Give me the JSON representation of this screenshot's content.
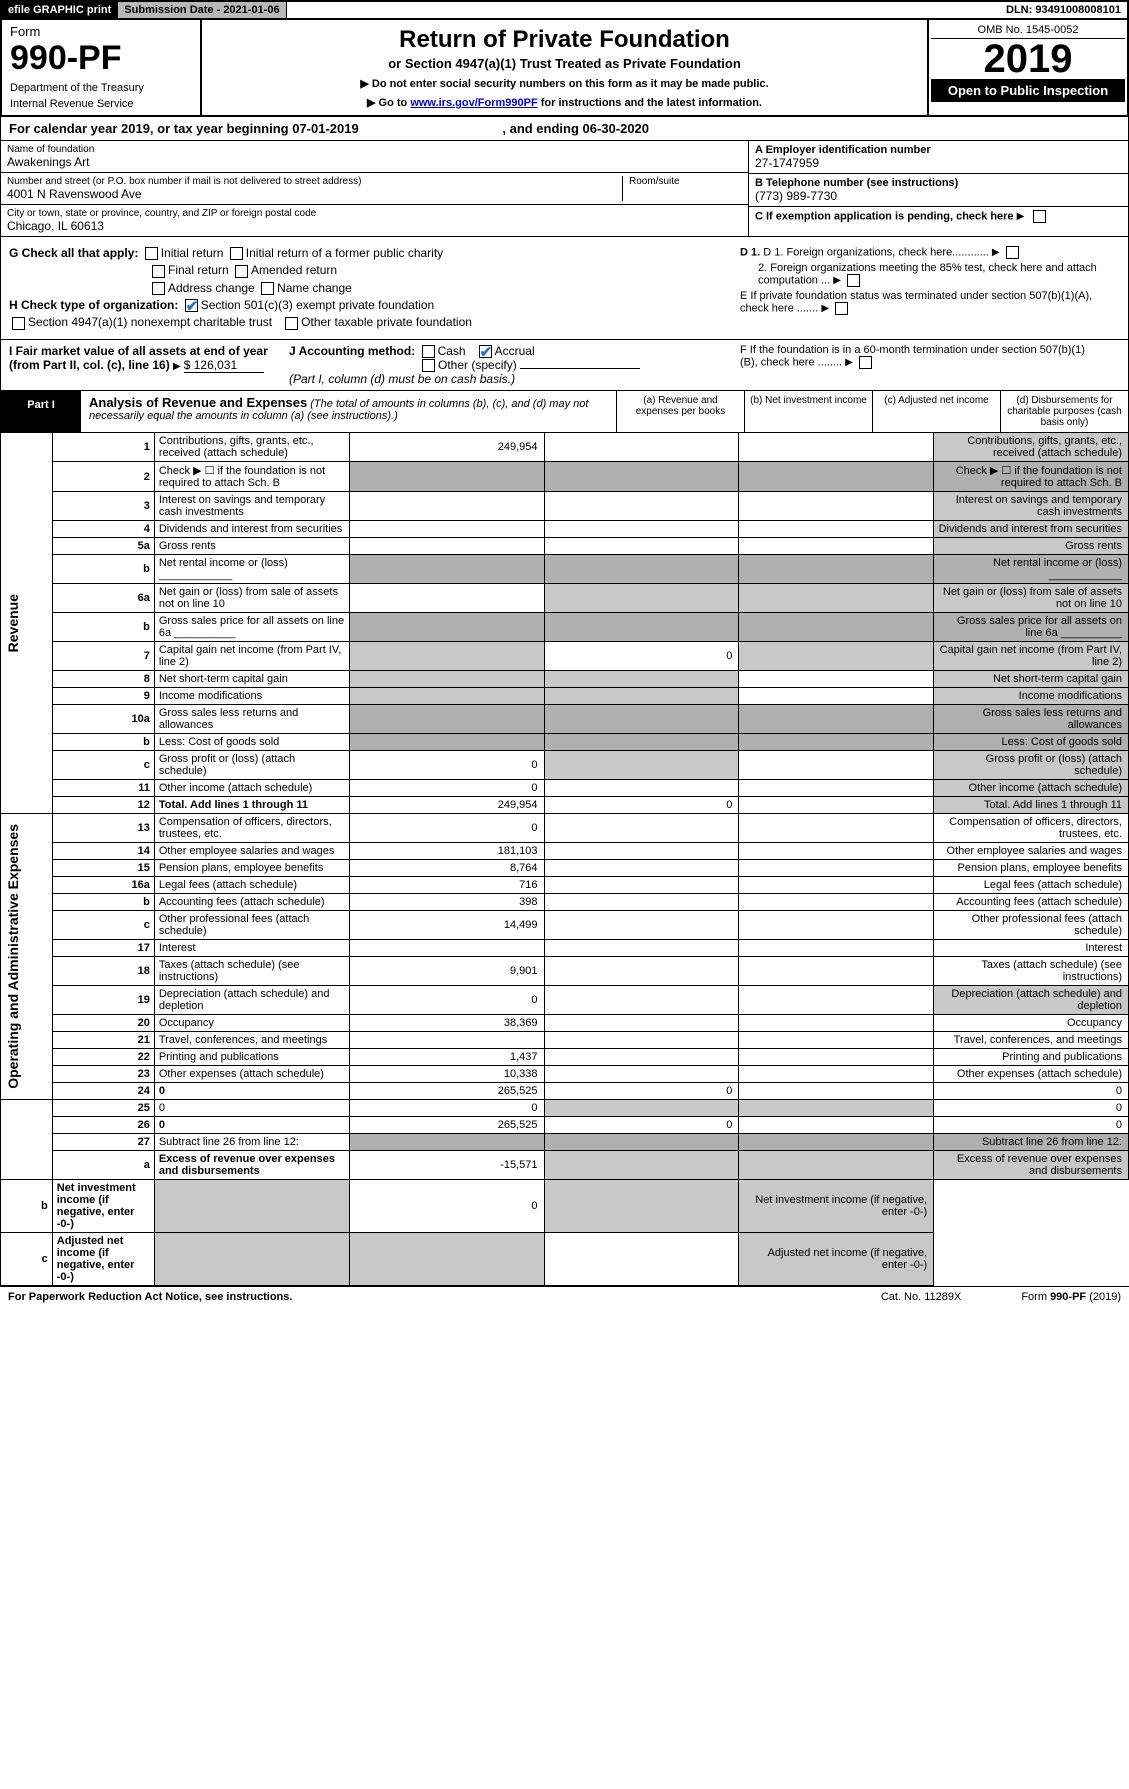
{
  "topbar": {
    "efile": "efile GRAPHIC print",
    "submission": "Submission Date - 2021-01-06",
    "dln": "DLN: 93491008008101"
  },
  "header": {
    "form": "Form",
    "formnum": "990-PF",
    "dept": "Department of the Treasury",
    "irs": "Internal Revenue Service",
    "title": "Return of Private Foundation",
    "sub1": "or Section 4947(a)(1) Trust Treated as Private Foundation",
    "sub2a": "▶ Do not enter social security numbers on this form as it may be made public.",
    "sub2b": "▶ Go to ",
    "link": "www.irs.gov/Form990PF",
    "sub2c": " for instructions and the latest information.",
    "omb": "OMB No. 1545-0052",
    "year": "2019",
    "open": "Open to Public Inspection"
  },
  "calendar": {
    "a": "For calendar year 2019, or tax year beginning 07-01-2019",
    "b": ", and ending 06-30-2020"
  },
  "info": {
    "name_lab": "Name of foundation",
    "name": "Awakenings Art",
    "addr_lab": "Number and street (or P.O. box number if mail is not delivered to street address)",
    "addr": "4001 N Ravenswood Ave",
    "room_lab": "Room/suite",
    "city_lab": "City or town, state or province, country, and ZIP or foreign postal code",
    "city": "Chicago, IL  60613",
    "ein_lab": "A Employer identification number",
    "ein": "27-1747959",
    "tel_lab": "B Telephone number (see instructions)",
    "tel": "(773) 989-7730",
    "c": "C If exemption application is pending, check here",
    "d1": "D 1. Foreign organizations, check here............",
    "d2": "2. Foreign organizations meeting the 85% test, check here and attach computation ...",
    "e": "E  If private foundation status was terminated under section 507(b)(1)(A), check here .......",
    "f": "F  If the foundation is in a 60-month termination under section 507(b)(1)(B), check here ........"
  },
  "g": {
    "label": "G Check all that apply:",
    "opts": [
      "Initial return",
      "Initial return of a former public charity",
      "Final return",
      "Amended return",
      "Address change",
      "Name change"
    ]
  },
  "h": {
    "label": "H Check type of organization:",
    "o1": "Section 501(c)(3) exempt private foundation",
    "o2": "Section 4947(a)(1) nonexempt charitable trust",
    "o3": "Other taxable private foundation"
  },
  "i": {
    "label": "I Fair market value of all assets at end of year (from Part II, col. (c), line 16)",
    "val": "$  126,031"
  },
  "j": {
    "label": "J Accounting method:",
    "cash": "Cash",
    "accrual": "Accrual",
    "other": "Other (specify)",
    "note": "(Part I, column (d) must be on cash basis.)"
  },
  "part1": {
    "label": "Part I",
    "title": "Analysis of Revenue and Expenses",
    "note": "(The total of amounts in columns (b), (c), and (d) may not necessarily equal the amounts in column (a) (see instructions).)",
    "cols": {
      "a": "(a)   Revenue and expenses per books",
      "b": "(b)   Net investment income",
      "c": "(c)   Adjusted net income",
      "d": "(d)   Disbursements for charitable purposes (cash basis only)"
    }
  },
  "sides": {
    "rev": "Revenue",
    "exp": "Operating and Administrative Expenses"
  },
  "rows": [
    {
      "n": "1",
      "d": "Contributions, gifts, grants, etc., received (attach schedule)",
      "a": "249,954",
      "grey": [
        "d"
      ]
    },
    {
      "n": "2",
      "d": "Check ▶ ☐ if the foundation is not required to attach Sch. B",
      "grey": [
        "a",
        "b",
        "c",
        "d"
      ],
      "dgrey": true
    },
    {
      "n": "3",
      "d": "Interest on savings and temporary cash investments",
      "grey": [
        "d"
      ]
    },
    {
      "n": "4",
      "d": "Dividends and interest from securities",
      "grey": [
        "d"
      ]
    },
    {
      "n": "5a",
      "d": "Gross rents",
      "grey": [
        "d"
      ]
    },
    {
      "n": "b",
      "d": "Net rental income or (loss) ____________",
      "grey": [
        "a",
        "b",
        "c",
        "d"
      ],
      "dgrey": true
    },
    {
      "n": "6a",
      "d": "Net gain or (loss) from sale of assets not on line 10",
      "grey": [
        "b",
        "c",
        "d"
      ]
    },
    {
      "n": "b",
      "d": "Gross sales price for all assets on line 6a __________",
      "grey": [
        "a",
        "b",
        "c",
        "d"
      ],
      "dgrey": true
    },
    {
      "n": "7",
      "d": "Capital gain net income (from Part IV, line 2)",
      "b": "0",
      "grey": [
        "a",
        "c",
        "d"
      ]
    },
    {
      "n": "8",
      "d": "Net short-term capital gain",
      "grey": [
        "a",
        "b",
        "d"
      ]
    },
    {
      "n": "9",
      "d": "Income modifications",
      "grey": [
        "a",
        "b",
        "d"
      ]
    },
    {
      "n": "10a",
      "d": "Gross sales less returns and allowances",
      "grey": [
        "a",
        "b",
        "c",
        "d"
      ],
      "dgrey": true
    },
    {
      "n": "b",
      "d": "Less: Cost of goods sold",
      "grey": [
        "a",
        "b",
        "c",
        "d"
      ],
      "dgrey": true
    },
    {
      "n": "c",
      "d": "Gross profit or (loss) (attach schedule)",
      "a": "0",
      "grey": [
        "b",
        "d"
      ]
    },
    {
      "n": "11",
      "d": "Other income (attach schedule)",
      "a": "0",
      "grey": [
        "d"
      ]
    },
    {
      "n": "12",
      "d": "Total. Add lines 1 through 11",
      "a": "249,954",
      "b": "0",
      "grey": [
        "d"
      ],
      "bold": true
    },
    {
      "n": "13",
      "d": "Compensation of officers, directors, trustees, etc.",
      "a": "0"
    },
    {
      "n": "14",
      "d": "Other employee salaries and wages",
      "a": "181,103"
    },
    {
      "n": "15",
      "d": "Pension plans, employee benefits",
      "a": "8,764"
    },
    {
      "n": "16a",
      "d": "Legal fees (attach schedule)",
      "a": "716"
    },
    {
      "n": "b",
      "d": "Accounting fees (attach schedule)",
      "a": "398"
    },
    {
      "n": "c",
      "d": "Other professional fees (attach schedule)",
      "a": "14,499"
    },
    {
      "n": "17",
      "d": "Interest"
    },
    {
      "n": "18",
      "d": "Taxes (attach schedule) (see instructions)",
      "a": "9,901"
    },
    {
      "n": "19",
      "d": "Depreciation (attach schedule) and depletion",
      "a": "0",
      "grey": [
        "d"
      ]
    },
    {
      "n": "20",
      "d": "Occupancy",
      "a": "38,369"
    },
    {
      "n": "21",
      "d": "Travel, conferences, and meetings"
    },
    {
      "n": "22",
      "d": "Printing and publications",
      "a": "1,437"
    },
    {
      "n": "23",
      "d": "Other expenses (attach schedule)",
      "a": "10,338"
    },
    {
      "n": "24",
      "d": "0",
      "a": "265,525",
      "b": "0",
      "c": "",
      "bold": true
    },
    {
      "n": "25",
      "d": "0",
      "a": "0",
      "grey": [
        "b",
        "c"
      ]
    },
    {
      "n": "26",
      "d": "0",
      "a": "265,525",
      "b": "0",
      "c": "",
      "bold": true
    },
    {
      "n": "27",
      "d": "Subtract line 26 from line 12:",
      "grey": [
        "a",
        "b",
        "c",
        "d"
      ],
      "dgrey": true
    },
    {
      "n": "a",
      "d": "Excess of revenue over expenses and disbursements",
      "a": "-15,571",
      "grey": [
        "b",
        "c",
        "d"
      ],
      "bold": true
    },
    {
      "n": "b",
      "d": "Net investment income (if negative, enter -0-)",
      "b": "0",
      "grey": [
        "a",
        "c",
        "d"
      ],
      "bold": true
    },
    {
      "n": "c",
      "d": "Adjusted net income (if negative, enter -0-)",
      "grey": [
        "a",
        "b",
        "d"
      ],
      "bold": true
    }
  ],
  "footer": {
    "left": "For Paperwork Reduction Act Notice, see instructions.",
    "mid": "Cat. No. 11289X",
    "right": "Form 990-PF (2019)"
  }
}
